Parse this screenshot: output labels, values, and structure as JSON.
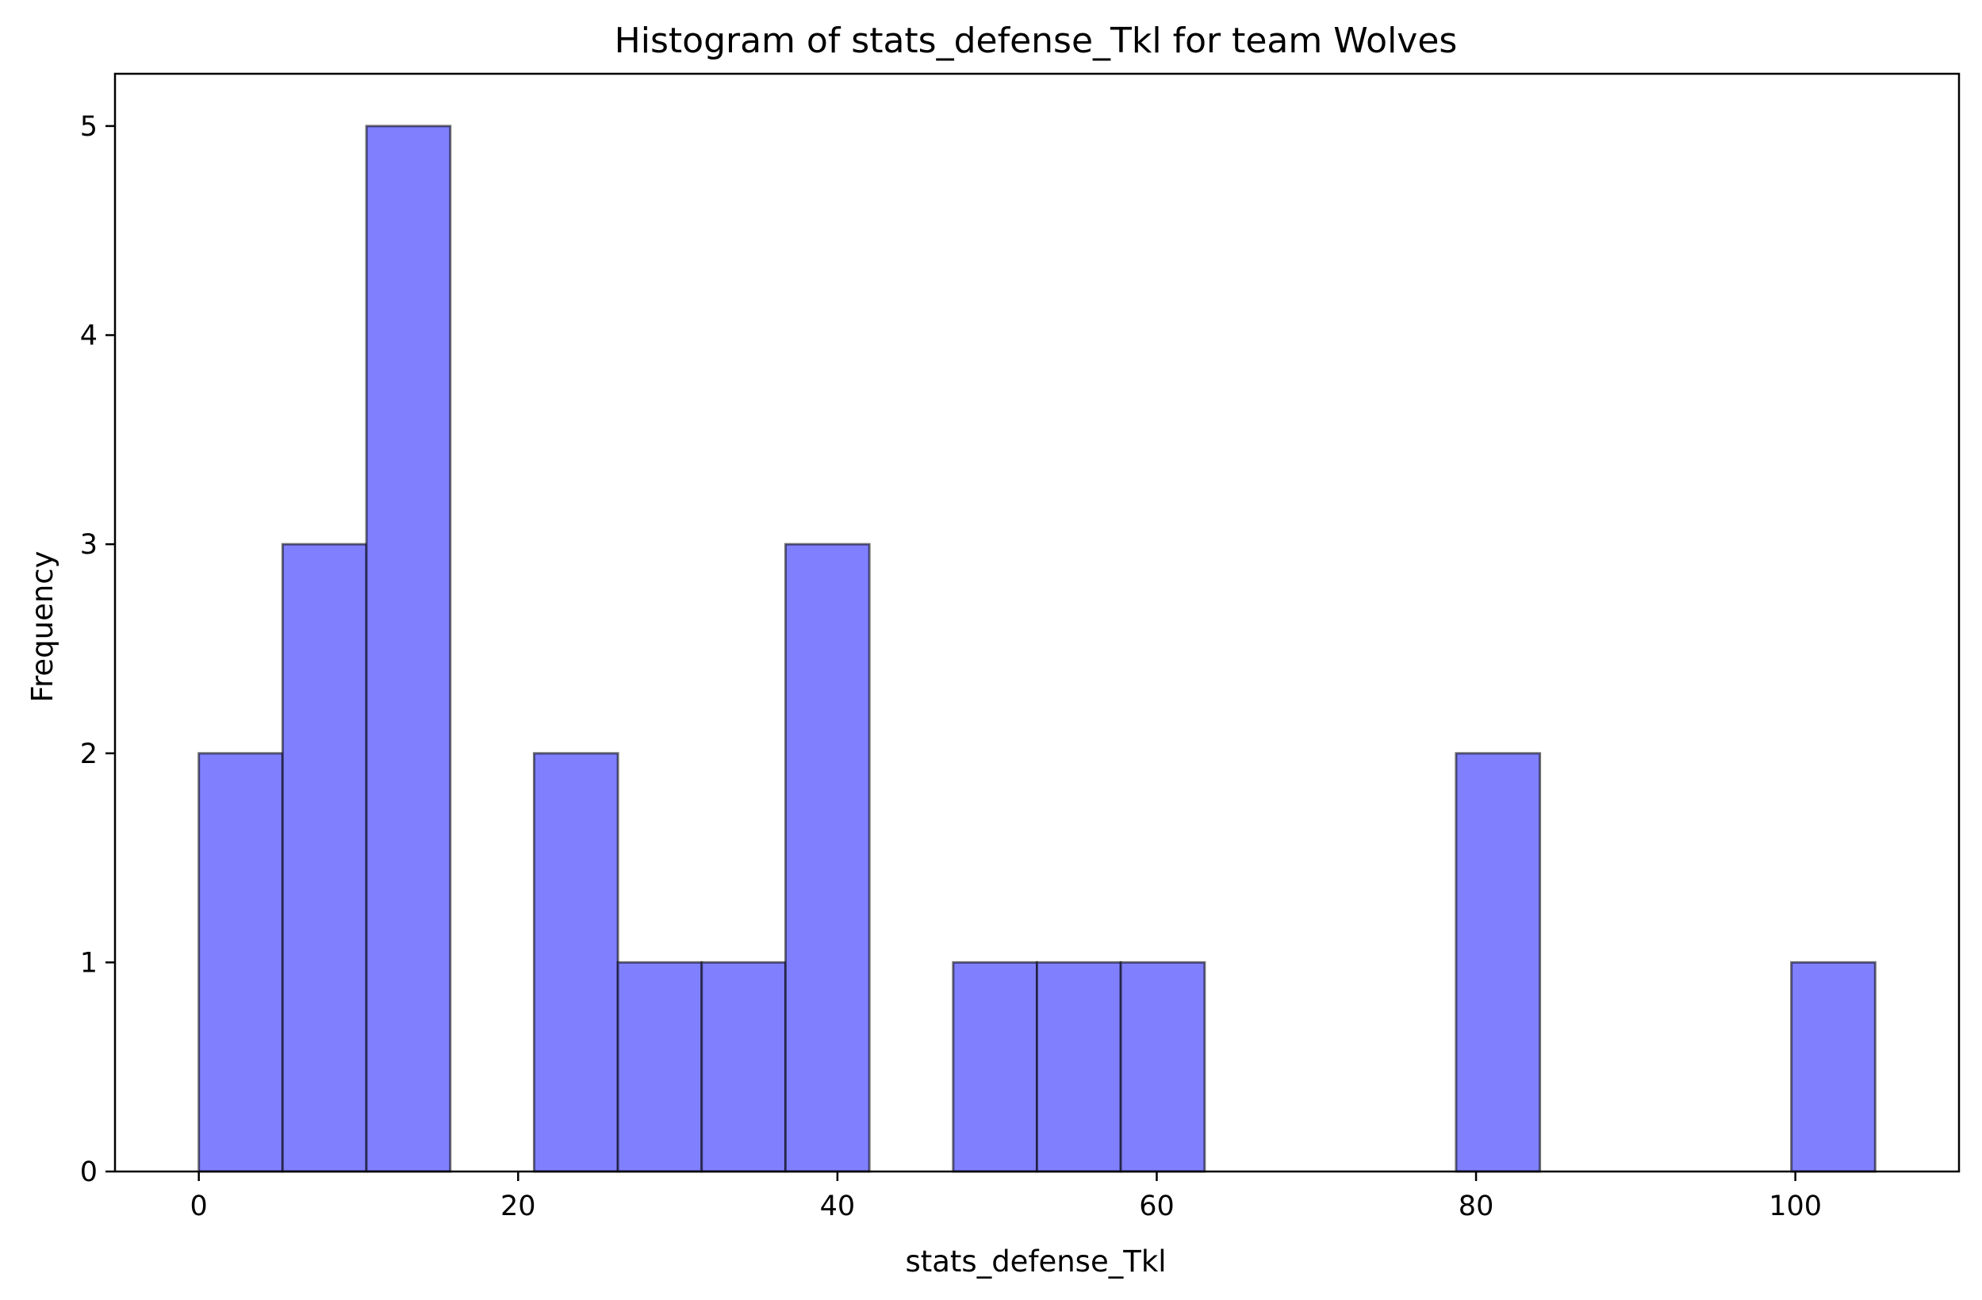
{
  "chart_data": {
    "type": "bar",
    "title": "Histogram of stats_defense_Tkl for team Wolves",
    "xlabel": "stats_defense_Tkl",
    "ylabel": "Frequency",
    "xlim": [
      -5.25,
      110.25
    ],
    "ylim": [
      0,
      5.25
    ],
    "xticks": [
      0,
      20,
      40,
      60,
      80,
      100
    ],
    "yticks": [
      0,
      1,
      2,
      3,
      4,
      5
    ],
    "bin_edges": [
      0,
      5.25,
      10.5,
      15.75,
      21,
      26.25,
      31.5,
      36.75,
      42,
      47.25,
      52.5,
      57.75,
      63,
      68.25,
      73.5,
      78.75,
      84,
      89.25,
      94.5,
      99.75,
      105
    ],
    "values": [
      2,
      3,
      5,
      0,
      2,
      1,
      1,
      3,
      0,
      1,
      1,
      1,
      0,
      0,
      0,
      2,
      0,
      0,
      0,
      1
    ],
    "bar_color": "#8080ff",
    "edge_color": "#000000",
    "grid": false,
    "legend": "none"
  }
}
